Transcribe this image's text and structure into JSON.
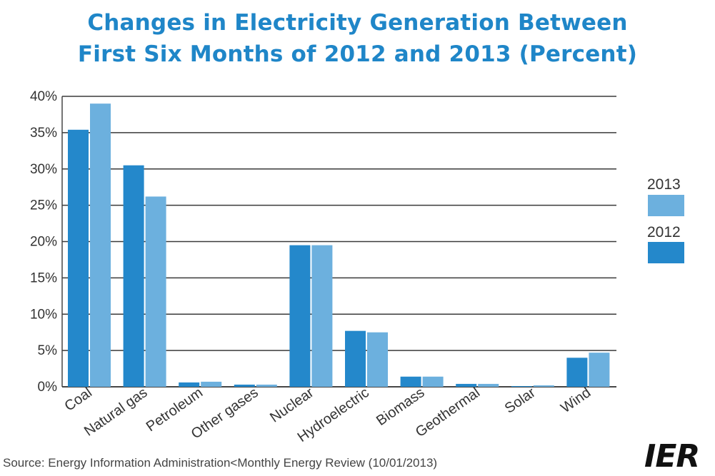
{
  "title": {
    "line1": "Changes in Electricity Generation Between",
    "line2": "First Six Months of 2012 and 2013 (Percent)"
  },
  "legend": {
    "items": [
      {
        "label": "2013",
        "color": "#6cb0de"
      },
      {
        "label": "2012",
        "color": "#2488cb"
      }
    ]
  },
  "source": "Source: Energy Information Administration<Monthly Energy Review (10/01/2013)",
  "logo": "IER",
  "chart_data": {
    "type": "bar",
    "categories": [
      "Coal",
      "Natural gas",
      "Petroleum",
      "Other gases",
      "Nuclear",
      "Hydroelectric",
      "Biomass",
      "Geothermal",
      "Solar",
      "Wind"
    ],
    "series": [
      {
        "name": "2012",
        "color": "#2488cb",
        "values": [
          35.4,
          30.5,
          0.6,
          0.3,
          19.5,
          7.7,
          1.4,
          0.4,
          0.1,
          4.0
        ]
      },
      {
        "name": "2013",
        "color": "#6cb0de",
        "values": [
          39.0,
          26.2,
          0.7,
          0.3,
          19.5,
          7.5,
          1.4,
          0.4,
          0.2,
          4.7
        ]
      }
    ],
    "y_ticks": [
      "0%",
      "5%",
      "10%",
      "15%",
      "20%",
      "25%",
      "30%",
      "35%",
      "40%"
    ],
    "ylim": [
      0,
      40
    ],
    "grid": true,
    "legend_position": "right"
  }
}
